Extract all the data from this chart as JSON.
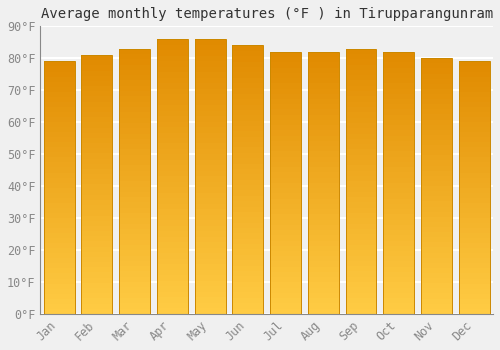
{
  "months": [
    "Jan",
    "Feb",
    "Mar",
    "Apr",
    "May",
    "Jun",
    "Jul",
    "Aug",
    "Sep",
    "Oct",
    "Nov",
    "Dec"
  ],
  "values": [
    79,
    81,
    83,
    86,
    86,
    84,
    82,
    82,
    83,
    82,
    80,
    79
  ],
  "bar_color_main": "#FFA500",
  "bar_color_top": "#E8960A",
  "bar_color_bottom": "#FFD060",
  "bar_edge_color": "#CC8800",
  "title": "Average monthly temperatures (°F ) in Tirupparangunram",
  "ylim": [
    0,
    90
  ],
  "yticks": [
    0,
    10,
    20,
    30,
    40,
    50,
    60,
    70,
    80,
    90
  ],
  "ytick_labels": [
    "0°F",
    "10°F",
    "20°F",
    "30°F",
    "40°F",
    "50°F",
    "60°F",
    "70°F",
    "80°F",
    "90°F"
  ],
  "background_color": "#f0f0f0",
  "plot_bg_color": "#f0f0f0",
  "grid_color": "#ffffff",
  "title_fontsize": 10,
  "tick_fontsize": 8.5,
  "bar_width": 0.82
}
